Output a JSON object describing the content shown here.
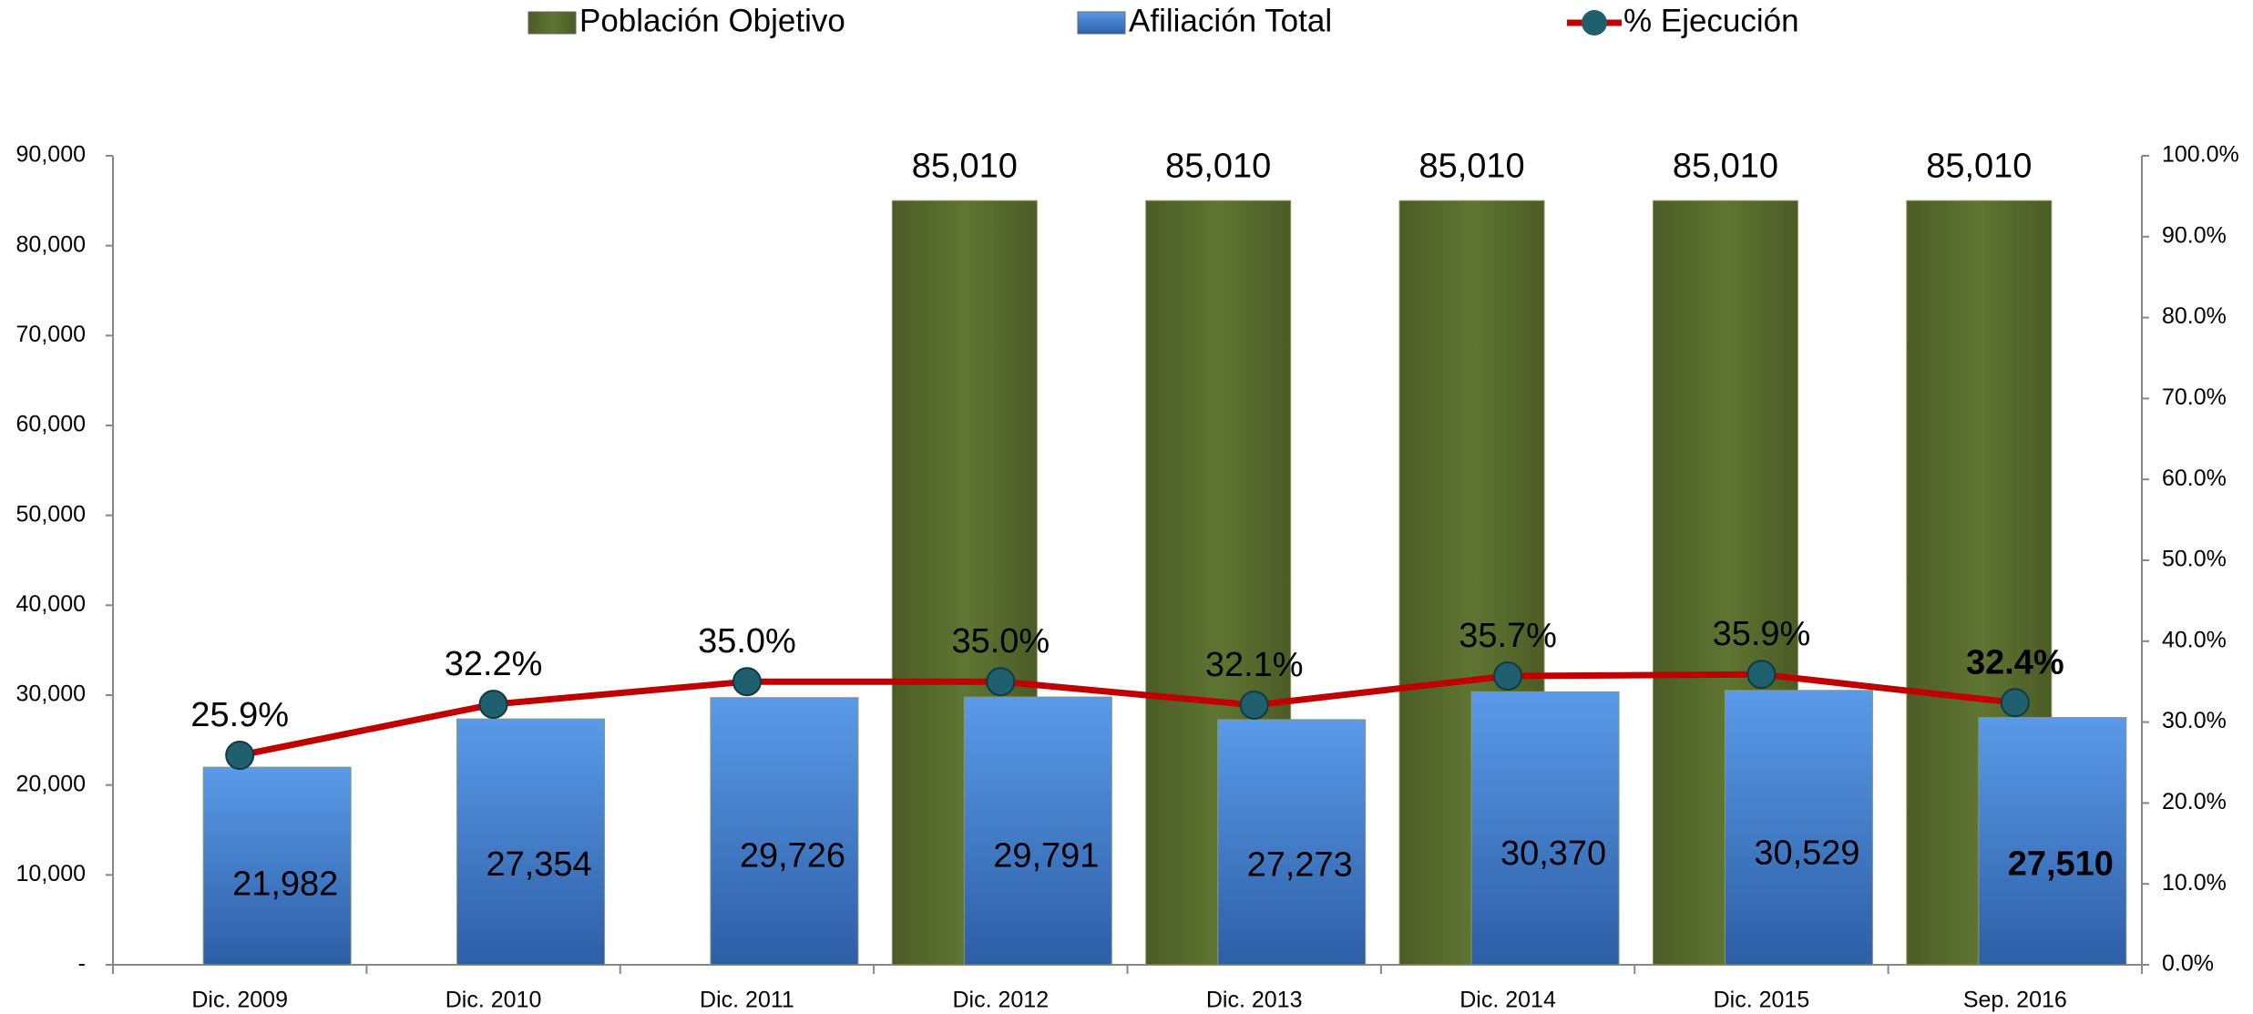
{
  "chart_data": {
    "type": "bar",
    "categories": [
      "Dic. 2009",
      "Dic. 2010",
      "Dic. 2011",
      "Dic. 2012",
      "Dic. 2013",
      "Dic. 2014",
      "Dic. 2015",
      "Sep. 2016"
    ],
    "series": [
      {
        "name": "Población Objetivo",
        "color": "#5a6e2e",
        "values": [
          null,
          null,
          null,
          85010,
          85010,
          85010,
          85010,
          85010
        ],
        "value_labels": [
          null,
          null,
          null,
          "85,010",
          "85,010",
          "85,010",
          "85,010",
          "85,010"
        ]
      },
      {
        "name": "Afiliación Total",
        "color": "#3f7fd4",
        "values": [
          21982,
          27354,
          29726,
          29791,
          27273,
          30370,
          30529,
          27510
        ],
        "value_labels": [
          "21,982",
          "27,354",
          "29,726",
          "29,791",
          "27,273",
          "30,370",
          "30,529",
          "27,510"
        ]
      },
      {
        "name": "% Ejecución",
        "color": "#c00000",
        "type": "line",
        "axis": "y2",
        "marker_color": "#1f5f6e",
        "values": [
          25.9,
          32.2,
          35.0,
          35.0,
          32.1,
          35.7,
          35.9,
          32.4
        ],
        "value_labels": [
          "25.9%",
          "32.2%",
          "35.0%",
          "35.0%",
          "32.1%",
          "35.7%",
          "35.9%",
          "32.4%"
        ]
      }
    ],
    "ylim": [
      0,
      90000
    ],
    "yticks": [
      {
        "value": 0,
        "label": "-"
      },
      {
        "value": 10000,
        "label": "10,000"
      },
      {
        "value": 20000,
        "label": "20,000"
      },
      {
        "value": 30000,
        "label": "30,000"
      },
      {
        "value": 40000,
        "label": "40,000"
      },
      {
        "value": 50000,
        "label": "50,000"
      },
      {
        "value": 60000,
        "label": "60,000"
      },
      {
        "value": 70000,
        "label": "70,000"
      },
      {
        "value": 80000,
        "label": "80,000"
      },
      {
        "value": 90000,
        "label": "90,000"
      }
    ],
    "y2lim": [
      0,
      100
    ],
    "y2ticks": [
      {
        "value": 0,
        "label": "0.0%"
      },
      {
        "value": 10,
        "label": "10.0%"
      },
      {
        "value": 20,
        "label": "20.0%"
      },
      {
        "value": 30,
        "label": "30.0%"
      },
      {
        "value": 40,
        "label": "40.0%"
      },
      {
        "value": 50,
        "label": "50.0%"
      },
      {
        "value": 60,
        "label": "60.0%"
      },
      {
        "value": 70,
        "label": "70.0%"
      },
      {
        "value": 80,
        "label": "80.0%"
      },
      {
        "value": 90,
        "label": "90.0%"
      },
      {
        "value": 100,
        "label": "100.0%"
      }
    ],
    "legend": "top",
    "grid": false
  }
}
